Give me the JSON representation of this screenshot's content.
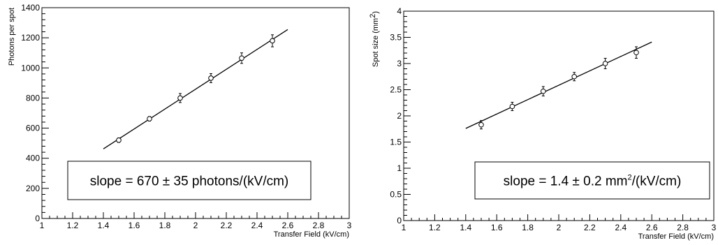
{
  "chart_data": [
    {
      "type": "scatter",
      "xlabel": "Transfer Field (kV/cm)",
      "ylabel": "Photons per spot",
      "xlim": [
        1,
        3
      ],
      "ylim": [
        0,
        1400
      ],
      "x_ticks": [
        1,
        1.2,
        1.4,
        1.6,
        1.8,
        2,
        2.2,
        2.4,
        2.6,
        2.8,
        3
      ],
      "x_tick_labels": [
        "1",
        "1.2",
        "1.4",
        "1.6",
        "1.8",
        "2",
        "2.2",
        "2.4",
        "2.6",
        "2.8",
        "3"
      ],
      "y_ticks": [
        0,
        200,
        400,
        600,
        800,
        1000,
        1200,
        1400
      ],
      "y_tick_labels": [
        "0",
        "200",
        "400",
        "600",
        "800",
        "1000",
        "1200",
        "1400"
      ],
      "grid": false,
      "series": [
        {
          "x": [
            1.5,
            1.7,
            1.9,
            2.1,
            2.3,
            2.5
          ],
          "y": [
            520,
            662,
            800,
            932,
            1065,
            1180
          ],
          "yerr": [
            15,
            15,
            30,
            30,
            35,
            40
          ]
        }
      ],
      "fit_line": {
        "x": [
          1.4,
          2.6
        ],
        "y": [
          462,
          1255
        ]
      },
      "annotation": {
        "text": "slope = 670 ± 35 photons/(kV/cm)"
      }
    },
    {
      "type": "scatter",
      "xlabel": "Transfer Field (kV/cm)",
      "ylabel": "Spot size (mm",
      "ylabel_sup": "2",
      "ylabel_end": ")",
      "xlim": [
        1,
        3
      ],
      "ylim": [
        0,
        4
      ],
      "x_ticks": [
        1,
        1.2,
        1.4,
        1.6,
        1.8,
        2,
        2.2,
        2.4,
        2.6,
        2.8,
        3
      ],
      "x_tick_labels": [
        "1",
        "1.2",
        "1.4",
        "1.6",
        "1.8",
        "2",
        "2.2",
        "2.4",
        "2.6",
        "2.8",
        "3"
      ],
      "y_ticks": [
        0,
        0.5,
        1,
        1.5,
        2,
        2.5,
        3,
        3.5,
        4
      ],
      "y_tick_labels": [
        "0",
        "0.5",
        "1",
        "1.5",
        "2",
        "2.5",
        "3",
        "3.5",
        "4"
      ],
      "grid": false,
      "series": [
        {
          "x": [
            1.5,
            1.7,
            1.9,
            2.1,
            2.3,
            2.5
          ],
          "y": [
            1.83,
            2.18,
            2.47,
            2.75,
            3.0,
            3.21
          ],
          "yerr": [
            0.08,
            0.08,
            0.09,
            0.08,
            0.1,
            0.11
          ]
        }
      ],
      "fit_line": {
        "x": [
          1.4,
          2.6
        ],
        "y": [
          1.76,
          3.41
        ]
      },
      "annotation": {
        "text_before": "slope = 1.4 ± 0.2 mm",
        "text_sup": "2",
        "text_after": "/(kV/cm)"
      }
    }
  ]
}
